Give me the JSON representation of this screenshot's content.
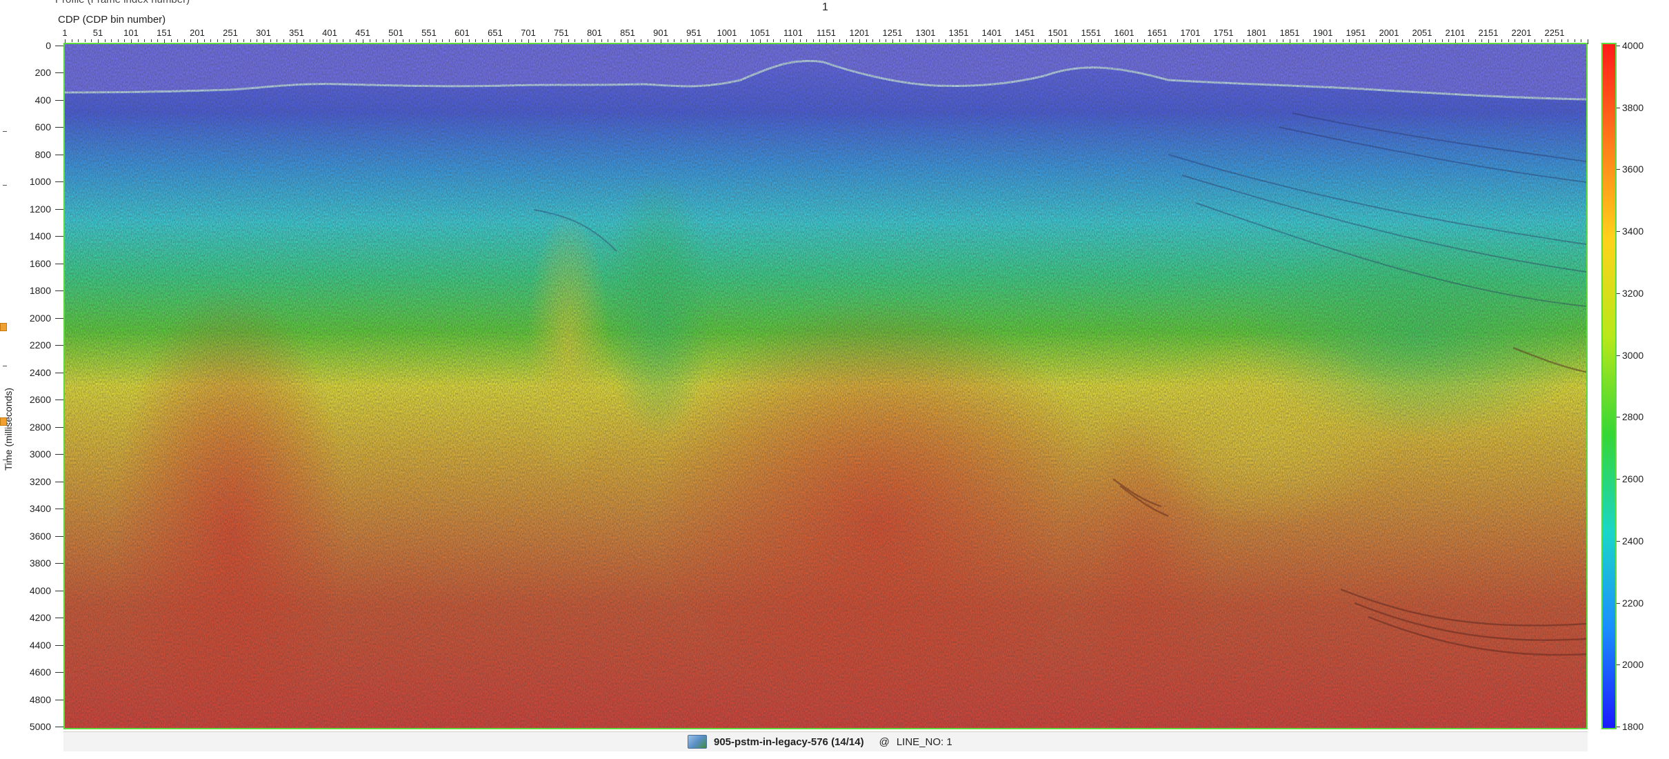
{
  "header": {
    "clipped_text": "Profile (Frame index number)",
    "line_index": "1",
    "x_axis_title": "CDP (CDP bin number)"
  },
  "x_axis": {
    "ticks": [
      "1",
      "51",
      "101",
      "151",
      "201",
      "251",
      "301",
      "351",
      "401",
      "451",
      "501",
      "551",
      "601",
      "651",
      "701",
      "751",
      "801",
      "851",
      "901",
      "951",
      "1001",
      "1051",
      "1101",
      "1151",
      "1201",
      "1251",
      "1301",
      "1351",
      "1401",
      "1451",
      "1501",
      "1551",
      "1601",
      "1651",
      "1701",
      "1751",
      "1801",
      "1851",
      "1901",
      "1951",
      "2001",
      "2051",
      "2101",
      "2151",
      "2201",
      "2251"
    ],
    "min": 1,
    "max": 2301
  },
  "y_axis": {
    "title": "Time (milliseconds)",
    "ticks": [
      "0",
      "200",
      "400",
      "600",
      "800",
      "1000",
      "1200",
      "1400",
      "1600",
      "1800",
      "2000",
      "2200",
      "2400",
      "2600",
      "2800",
      "3000",
      "3200",
      "3400",
      "3600",
      "3800",
      "4000",
      "4200",
      "4400",
      "4600",
      "4800",
      "5000"
    ],
    "min": 0,
    "max": 5000
  },
  "colorbar": {
    "ticks": [
      "4000",
      "3800",
      "3600",
      "3400",
      "3200",
      "3000",
      "2800",
      "2600",
      "2400",
      "2200",
      "2000",
      "1800"
    ],
    "min": 1800,
    "max": 4000,
    "colors": [
      "#ff1a1a",
      "#ff7a1a",
      "#ffd21a",
      "#b8e81a",
      "#35d635",
      "#1ad6c8",
      "#1a8cff",
      "#1a1aff"
    ]
  },
  "status_bar": {
    "dataset": "905-pstm-in-legacy-576 (14/14)",
    "at": "@",
    "line_no": "LINE_NO: 1"
  },
  "section_colors": {
    "water": "#7070ee",
    "deep": "#c44a32"
  }
}
